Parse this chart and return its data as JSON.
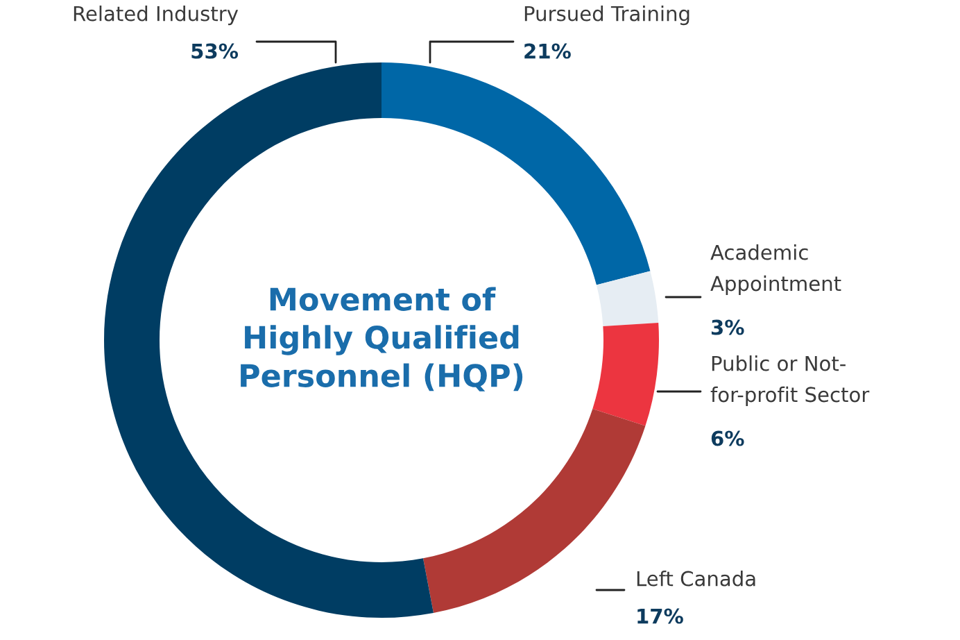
{
  "chart_data": {
    "type": "donut",
    "title": "Movement of\nHighly Qualified\nPersonnel (HQP)",
    "categories": [
      "Pursued Training",
      "Academic\nAppointment",
      "Public or Not-\nfor-profit Sector",
      "Left Canada",
      "Related Industry"
    ],
    "values": [
      21,
      3,
      6,
      17,
      53
    ],
    "value_labels": [
      "21%",
      "3%",
      "6%",
      "17%",
      "53%"
    ],
    "colors": [
      "#0067a7",
      "#e6edf3",
      "#ec3540",
      "#b03a36",
      "#003d63"
    ],
    "legend": false
  }
}
